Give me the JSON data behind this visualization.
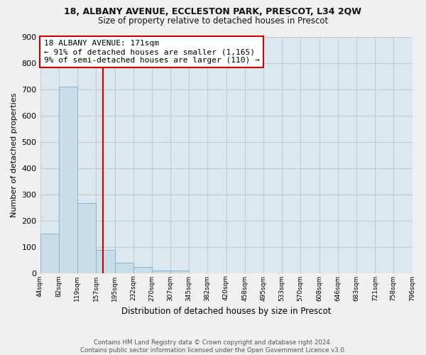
{
  "title": "18, ALBANY AVENUE, ECCLESTON PARK, PRESCOT, L34 2QW",
  "subtitle": "Size of property relative to detached houses in Prescot",
  "xlabel": "Distribution of detached houses by size in Prescot",
  "ylabel": "Number of detached properties",
  "bar_values": [
    150,
    710,
    265,
    88,
    38,
    22,
    10,
    10,
    0,
    0,
    0,
    0,
    0,
    0,
    0,
    0,
    0,
    0,
    0,
    0
  ],
  "bin_labels": [
    "44sqm",
    "82sqm",
    "119sqm",
    "157sqm",
    "195sqm",
    "232sqm",
    "270sqm",
    "307sqm",
    "345sqm",
    "382sqm",
    "420sqm",
    "458sqm",
    "495sqm",
    "533sqm",
    "570sqm",
    "608sqm",
    "646sqm",
    "683sqm",
    "721sqm",
    "758sqm",
    "796sqm"
  ],
  "bar_color": "#c8dcea",
  "bar_edge_color": "#8ab4cc",
  "vline_color": "#cc0000",
  "vline_x": 171,
  "annotation_text": "18 ALBANY AVENUE: 171sqm\n← 91% of detached houses are smaller (1,165)\n9% of semi-detached houses are larger (110) →",
  "annotation_box_color": "#ffffff",
  "annotation_box_edge": "#cc0000",
  "ylim": [
    0,
    900
  ],
  "yticks": [
    0,
    100,
    200,
    300,
    400,
    500,
    600,
    700,
    800,
    900
  ],
  "grid_color": "#c8c8d0",
  "bg_color": "#dce8f0",
  "fig_bg_color": "#f0f0f0",
  "footer_text": "Contains HM Land Registry data © Crown copyright and database right 2024.\nContains public sector information licensed under the Open Government Licence v3.0.",
  "bin_edges": [
    44,
    82,
    119,
    157,
    195,
    232,
    270,
    307,
    345,
    382,
    420,
    458,
    495,
    533,
    570,
    608,
    646,
    683,
    721,
    758,
    796
  ]
}
